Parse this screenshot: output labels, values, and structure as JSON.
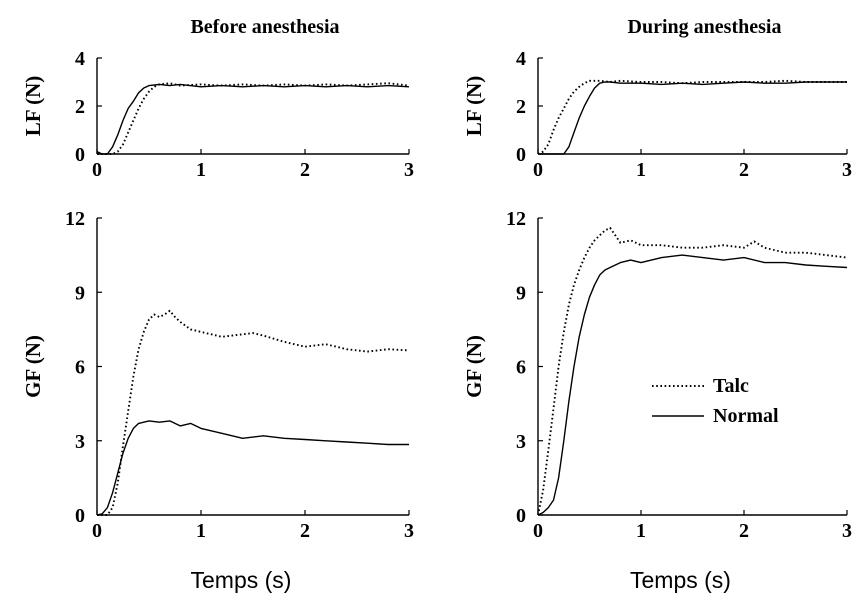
{
  "chart_data": [
    {
      "type": "line",
      "title": "Before anesthesia",
      "ylabel": "LF (N)",
      "xlabel": "",
      "xlim": [
        0,
        3
      ],
      "ylim": [
        0,
        4
      ],
      "xticks": [
        "0",
        "1",
        "2",
        "3"
      ],
      "yticks": [
        "0",
        "2",
        "4"
      ],
      "grid": false,
      "series": [
        {
          "style": "solid",
          "x": [
            0,
            0.05,
            0.1,
            0.15,
            0.2,
            0.25,
            0.3,
            0.35,
            0.4,
            0.45,
            0.5,
            0.6,
            0.7,
            0.8,
            1.0,
            1.2,
            1.4,
            1.6,
            1.8,
            2.0,
            2.2,
            2.4,
            2.6,
            2.8,
            3.0
          ],
          "y": [
            0.1,
            0.0,
            0.0,
            0.3,
            0.8,
            1.4,
            1.9,
            2.2,
            2.55,
            2.75,
            2.85,
            2.9,
            2.85,
            2.9,
            2.8,
            2.85,
            2.8,
            2.85,
            2.8,
            2.85,
            2.8,
            2.85,
            2.8,
            2.85,
            2.8
          ]
        },
        {
          "style": "dotted",
          "x": [
            0,
            0.05,
            0.1,
            0.15,
            0.2,
            0.25,
            0.3,
            0.35,
            0.4,
            0.45,
            0.5,
            0.55,
            0.6,
            0.7,
            0.8,
            1.0,
            1.2,
            1.4,
            1.6,
            1.8,
            2.0,
            2.2,
            2.4,
            2.6,
            2.8,
            3.0
          ],
          "y": [
            0.0,
            0.0,
            0.0,
            0.0,
            0.1,
            0.4,
            0.9,
            1.4,
            1.9,
            2.3,
            2.6,
            2.8,
            2.9,
            2.95,
            2.85,
            2.9,
            2.85,
            2.9,
            2.85,
            2.9,
            2.85,
            2.9,
            2.85,
            2.9,
            2.95,
            2.85
          ]
        }
      ]
    },
    {
      "type": "line",
      "title": "During anesthesia",
      "ylabel": "LF (N)",
      "xlabel": "",
      "xlim": [
        0,
        3
      ],
      "ylim": [
        0,
        4
      ],
      "xticks": [
        "0",
        "1",
        "2",
        "3"
      ],
      "yticks": [
        "0",
        "2",
        "4"
      ],
      "grid": false,
      "series": [
        {
          "style": "solid",
          "x": [
            0,
            0.2,
            0.25,
            0.3,
            0.35,
            0.4,
            0.45,
            0.5,
            0.55,
            0.6,
            0.65,
            0.7,
            0.8,
            1.0,
            1.2,
            1.4,
            1.6,
            1.8,
            2.0,
            2.2,
            2.4,
            2.6,
            2.8,
            3.0
          ],
          "y": [
            0.0,
            0.0,
            0.0,
            0.3,
            0.9,
            1.5,
            2.0,
            2.4,
            2.75,
            2.95,
            3.0,
            3.0,
            2.95,
            2.95,
            2.9,
            2.95,
            2.9,
            2.95,
            3.0,
            2.95,
            2.95,
            3.0,
            3.0,
            3.0
          ]
        },
        {
          "style": "dotted",
          "x": [
            0,
            0.05,
            0.1,
            0.15,
            0.2,
            0.25,
            0.3,
            0.35,
            0.4,
            0.45,
            0.5,
            0.55,
            0.6,
            0.7,
            0.8,
            1.0,
            1.2,
            1.4,
            1.6,
            1.8,
            2.0,
            2.2,
            2.4,
            2.6,
            2.8,
            3.0
          ],
          "y": [
            0.0,
            0.1,
            0.4,
            1.0,
            1.5,
            1.9,
            2.3,
            2.6,
            2.8,
            2.95,
            3.05,
            3.05,
            3.05,
            3.0,
            3.05,
            3.0,
            3.0,
            2.95,
            3.0,
            3.0,
            3.0,
            3.0,
            3.05,
            3.0,
            3.0,
            3.0
          ]
        }
      ]
    },
    {
      "type": "line",
      "title": "",
      "ylabel": "GF (N)",
      "xlabel": "Temps (s)",
      "xlim": [
        0,
        3
      ],
      "ylim": [
        0,
        12
      ],
      "xticks": [
        "0",
        "1",
        "2",
        "3"
      ],
      "yticks": [
        "0",
        "3",
        "6",
        "9",
        "12"
      ],
      "grid": false,
      "series": [
        {
          "style": "solid",
          "x": [
            0,
            0.05,
            0.1,
            0.15,
            0.2,
            0.25,
            0.3,
            0.35,
            0.4,
            0.45,
            0.5,
            0.6,
            0.7,
            0.8,
            0.9,
            1.0,
            1.2,
            1.4,
            1.6,
            1.8,
            2.0,
            2.2,
            2.4,
            2.6,
            2.8,
            3.0
          ],
          "y": [
            0.0,
            0.05,
            0.3,
            0.9,
            1.7,
            2.5,
            3.1,
            3.5,
            3.7,
            3.75,
            3.8,
            3.75,
            3.8,
            3.6,
            3.7,
            3.5,
            3.3,
            3.1,
            3.2,
            3.1,
            3.05,
            3.0,
            2.95,
            2.9,
            2.85,
            2.85
          ]
        },
        {
          "style": "dotted",
          "x": [
            0,
            0.1,
            0.15,
            0.2,
            0.25,
            0.3,
            0.35,
            0.4,
            0.45,
            0.5,
            0.55,
            0.6,
            0.65,
            0.7,
            0.75,
            0.8,
            0.9,
            1.0,
            1.2,
            1.4,
            1.5,
            1.6,
            1.8,
            2.0,
            2.2,
            2.4,
            2.6,
            2.8,
            3.0
          ],
          "y": [
            0.0,
            0.0,
            0.3,
            1.3,
            2.8,
            4.2,
            5.6,
            6.7,
            7.4,
            7.9,
            8.1,
            8.0,
            8.1,
            8.25,
            8.0,
            7.8,
            7.5,
            7.4,
            7.2,
            7.3,
            7.35,
            7.25,
            7.0,
            6.8,
            6.9,
            6.7,
            6.6,
            6.7,
            6.65
          ]
        }
      ]
    },
    {
      "type": "line",
      "title": "",
      "ylabel": "GF (N)",
      "xlabel": "Temps (s)",
      "xlim": [
        0,
        3
      ],
      "ylim": [
        0,
        12
      ],
      "xticks": [
        "0",
        "1",
        "2",
        "3"
      ],
      "yticks": [
        "0",
        "3",
        "6",
        "9",
        "12"
      ],
      "grid": false,
      "legend": {
        "position": "center-right",
        "entries": [
          {
            "label": "Talc",
            "style": "dotted"
          },
          {
            "label": "Normal",
            "style": "solid"
          }
        ]
      },
      "series": [
        {
          "name": "Normal",
          "style": "solid",
          "x": [
            0,
            0.05,
            0.1,
            0.15,
            0.2,
            0.25,
            0.3,
            0.35,
            0.4,
            0.45,
            0.5,
            0.55,
            0.6,
            0.65,
            0.7,
            0.8,
            0.9,
            1.0,
            1.2,
            1.4,
            1.6,
            1.8,
            2.0,
            2.2,
            2.4,
            2.6,
            2.8,
            3.0
          ],
          "y": [
            0.0,
            0.1,
            0.3,
            0.6,
            1.5,
            3.0,
            4.6,
            6.0,
            7.2,
            8.1,
            8.8,
            9.3,
            9.7,
            9.9,
            10.0,
            10.2,
            10.3,
            10.2,
            10.4,
            10.5,
            10.4,
            10.3,
            10.4,
            10.2,
            10.2,
            10.1,
            10.05,
            10.0
          ]
        },
        {
          "name": "Talc",
          "style": "dotted",
          "x": [
            0,
            0.05,
            0.1,
            0.15,
            0.2,
            0.25,
            0.3,
            0.35,
            0.4,
            0.45,
            0.5,
            0.55,
            0.6,
            0.65,
            0.7,
            0.75,
            0.8,
            0.9,
            1.0,
            1.2,
            1.4,
            1.6,
            1.8,
            2.0,
            2.1,
            2.2,
            2.4,
            2.6,
            2.8,
            3.0
          ],
          "y": [
            0.0,
            1.0,
            2.6,
            4.3,
            6.0,
            7.4,
            8.5,
            9.3,
            9.9,
            10.4,
            10.8,
            11.1,
            11.3,
            11.5,
            11.6,
            11.3,
            11.0,
            11.1,
            10.9,
            10.9,
            10.8,
            10.8,
            10.9,
            10.8,
            11.05,
            10.8,
            10.6,
            10.6,
            10.5,
            10.4
          ]
        }
      ]
    }
  ]
}
